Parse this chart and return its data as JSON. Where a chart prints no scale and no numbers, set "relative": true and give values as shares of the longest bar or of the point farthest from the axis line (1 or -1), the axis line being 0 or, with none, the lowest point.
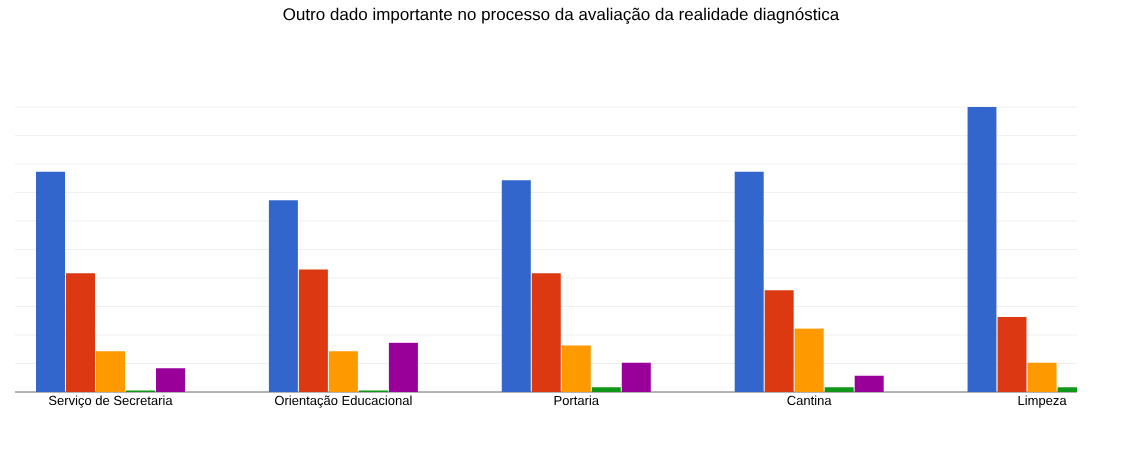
{
  "chart_data": {
    "type": "bar",
    "title": "Outro dado importante no processo da avaliação da realidade diagnóstica",
    "relative": true,
    "grid": "y",
    "categories": [
      "Serviço de Secretaria",
      "Orientação Educacional",
      "Portaria",
      "Cantina",
      "Limpeza"
    ],
    "series": [
      {
        "color": "#3366cc",
        "values": [
          0.773,
          0.673,
          0.743,
          0.773,
          1
        ]
      },
      {
        "color": "#dc3912",
        "values": [
          0.417,
          0.43,
          0.417,
          0.357,
          0.263
        ]
      },
      {
        "color": "#ff9900",
        "values": [
          0.143,
          0.143,
          0.163,
          0.223,
          0.103
        ]
      },
      {
        "color": "#109618",
        "values": [
          0.005,
          0.005,
          0.017,
          0.017,
          0.017
        ]
      },
      {
        "color": "#990099",
        "values": [
          0.083,
          0.173,
          0.103,
          0.057,
          null
        ]
      }
    ]
  }
}
